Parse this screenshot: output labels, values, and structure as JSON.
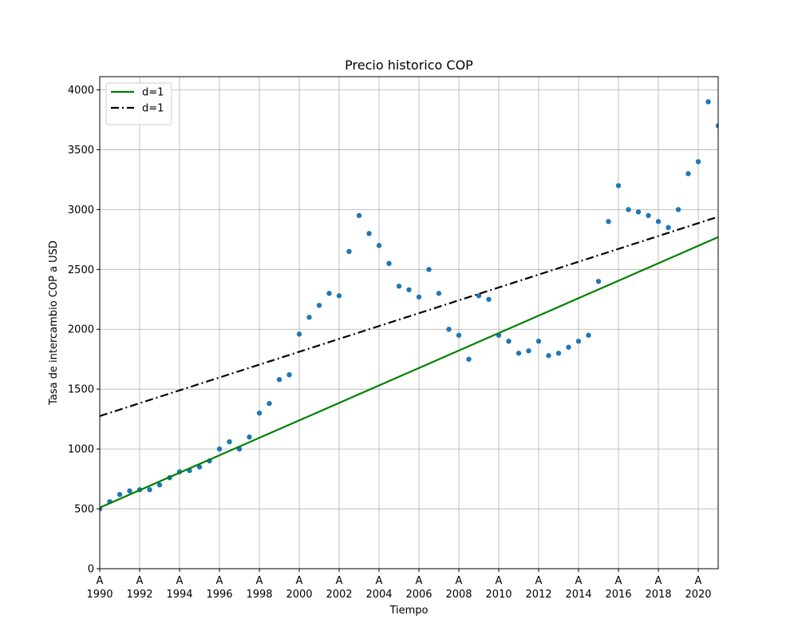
{
  "chart_data": {
    "type": "scatter",
    "title": "Precio historico COP",
    "xlabel": "Tiempo",
    "ylabel": "Tasa de intercambio COP a USD",
    "xlim": [
      1990,
      2021
    ],
    "ylim": [
      0,
      4110
    ],
    "grid": true,
    "legend_position": "top-left",
    "y_ticks": [
      0,
      500,
      1000,
      1500,
      2000,
      2500,
      3000,
      3500,
      4000
    ],
    "x_ticks": [
      {
        "value": 1990,
        "top": "A",
        "bottom": "1990"
      },
      {
        "value": 1992,
        "top": "A",
        "bottom": "1992"
      },
      {
        "value": 1994,
        "top": "A",
        "bottom": "1994"
      },
      {
        "value": 1996,
        "top": "A",
        "bottom": "1996"
      },
      {
        "value": 1998,
        "top": "A",
        "bottom": "1998"
      },
      {
        "value": 2000,
        "top": "A",
        "bottom": "2000"
      },
      {
        "value": 2002,
        "top": "A",
        "bottom": "2002"
      },
      {
        "value": 2004,
        "top": "A",
        "bottom": "2004"
      },
      {
        "value": 2006,
        "top": "A",
        "bottom": "2006"
      },
      {
        "value": 2008,
        "top": "A",
        "bottom": "2008"
      },
      {
        "value": 2010,
        "top": "A",
        "bottom": "2010"
      },
      {
        "value": 2012,
        "top": "A",
        "bottom": "2012"
      },
      {
        "value": 2014,
        "top": "A",
        "bottom": "2014"
      },
      {
        "value": 2016,
        "top": "A",
        "bottom": "2016"
      },
      {
        "value": 2018,
        "top": "A",
        "bottom": "2018"
      },
      {
        "value": 2020,
        "top": "A",
        "bottom": "2020"
      }
    ],
    "series": [
      {
        "name": "",
        "type": "scatter",
        "color": "#1f77b4",
        "x": [
          1990.0,
          1990.5,
          1991.0,
          1991.5,
          1992.0,
          1992.5,
          1993.0,
          1993.5,
          1994.0,
          1994.5,
          1995.0,
          1995.5,
          1996.0,
          1996.5,
          1997.0,
          1997.5,
          1998.0,
          1998.5,
          1999.0,
          1999.5,
          2000.0,
          2000.5,
          2001.0,
          2001.5,
          2002.0,
          2002.5,
          2003.0,
          2003.5,
          2004.0,
          2004.5,
          2005.0,
          2005.5,
          2006.0,
          2006.5,
          2007.0,
          2007.5,
          2008.0,
          2008.5,
          2009.0,
          2009.5,
          2010.0,
          2010.5,
          2011.0,
          2011.5,
          2012.0,
          2012.5,
          2013.0,
          2013.5,
          2014.0,
          2014.5,
          2015.0,
          2015.5,
          2016.0,
          2016.5,
          2017.0,
          2017.5,
          2018.0,
          2018.5,
          2019.0,
          2019.5,
          2020.0,
          2020.5,
          2021.0
        ],
        "y": [
          500,
          560,
          620,
          650,
          660,
          660,
          700,
          760,
          810,
          820,
          850,
          900,
          1000,
          1060,
          1000,
          1100,
          1300,
          1380,
          1580,
          1620,
          1960,
          2100,
          2200,
          2300,
          2280,
          2650,
          2950,
          2800,
          2700,
          2550,
          2360,
          2330,
          2270,
          2500,
          2300,
          2000,
          1950,
          1750,
          2280,
          2250,
          1950,
          1900,
          1800,
          1820,
          1900,
          1780,
          1800,
          1850,
          1900,
          1950,
          2400,
          2900,
          3200,
          3000,
          2980,
          2950,
          2900,
          2850,
          3000,
          3300,
          3400,
          3900,
          3700
        ]
      },
      {
        "name": "d=1",
        "type": "line",
        "color": "#008000",
        "style": "solid",
        "x": [
          1990,
          2021
        ],
        "y": [
          510,
          2770
        ]
      },
      {
        "name": "d=1",
        "type": "line",
        "color": "#000000",
        "style": "dashdot",
        "x": [
          1990,
          2021
        ],
        "y": [
          1275,
          2940
        ]
      }
    ]
  }
}
